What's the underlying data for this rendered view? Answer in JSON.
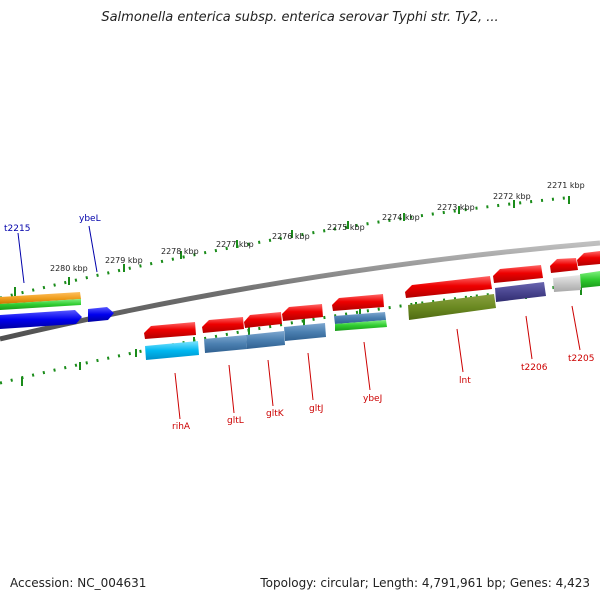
{
  "title": "Salmonella enterica subsp. enterica serovar Typhi str. Ty2, ...",
  "footer": {
    "accession": "Accession: NC_004631",
    "topology": "Topology: circular; Length: 4,791,961 bp; Genes: 4,423"
  },
  "colors": {
    "backbone": "#808080",
    "ticks": "#1a8c1a",
    "gene_label": "#cc0000",
    "gene_label_blue": "#0000aa"
  },
  "kbp_labels": [
    "2280 kbp",
    "2279 kbp",
    "2278 kbp",
    "2277 kbp",
    "2276 kbp",
    "2275 kbp",
    "2274 kbp",
    "2273 kbp",
    "2272 kbp",
    "2271 kbp"
  ],
  "gene_labels": [
    "t2215",
    "ybeL",
    "rihA",
    "gltL",
    "gltK",
    "gltJ",
    "ybeJ",
    "lnt",
    "t2206",
    "t2205"
  ]
}
